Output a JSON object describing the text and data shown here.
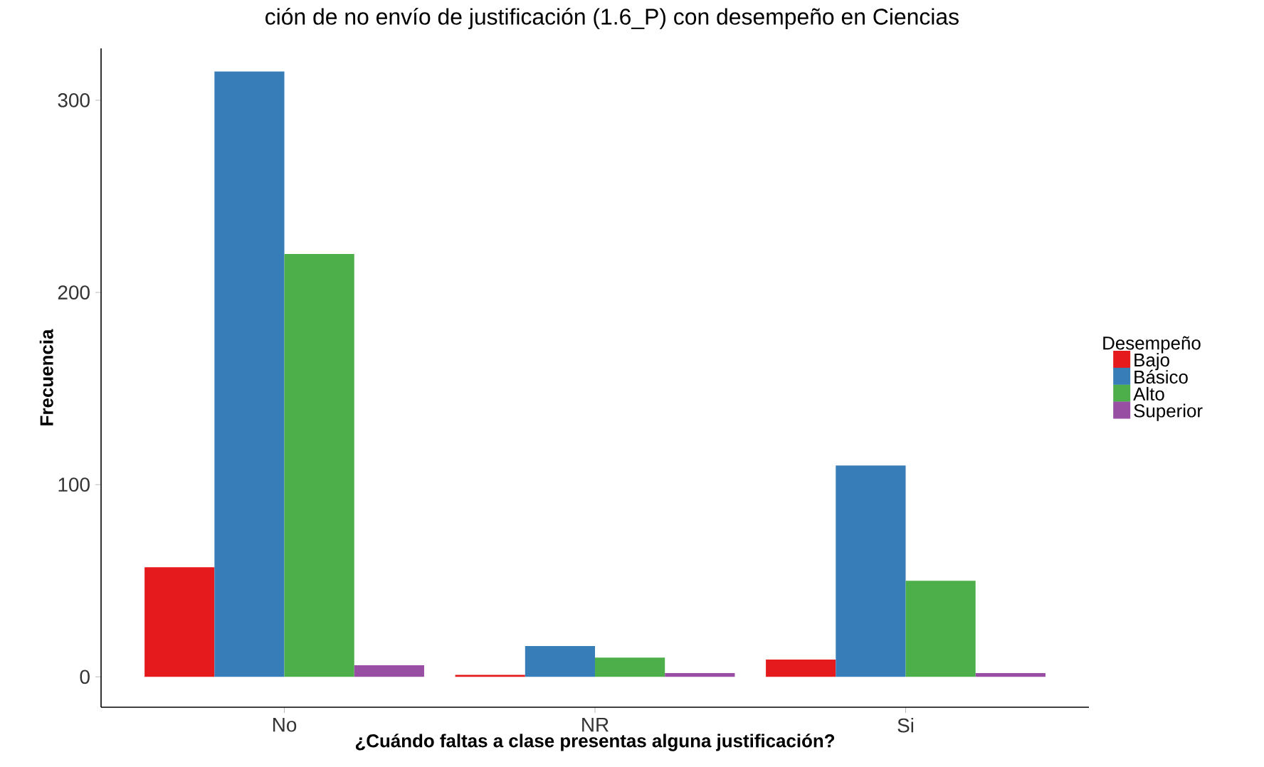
{
  "chart_data": {
    "type": "bar",
    "title": "ción de no envío de justificación (1.6_P) con desempeño en Ciencias",
    "xlabel": "¿Cuándo faltas a clase presentas alguna justificación?",
    "ylabel": "Frecuencia",
    "legend_title": "Desempeño",
    "categories": [
      "No",
      "NR",
      "Si"
    ],
    "series": [
      {
        "name": "Bajo",
        "color": "#e41a1c",
        "values": [
          57,
          1,
          9
        ]
      },
      {
        "name": "Básico",
        "color": "#377eb8",
        "values": [
          315,
          16,
          110
        ]
      },
      {
        "name": "Alto",
        "color": "#4daf4a",
        "values": [
          220,
          10,
          50
        ]
      },
      {
        "name": "Superior",
        "color": "#984ea3",
        "values": [
          6,
          2,
          2
        ]
      }
    ],
    "ylim": [
      -15.8,
      327
    ],
    "yticks": [
      0,
      100,
      200,
      300
    ],
    "grid": false,
    "legend": "right"
  }
}
